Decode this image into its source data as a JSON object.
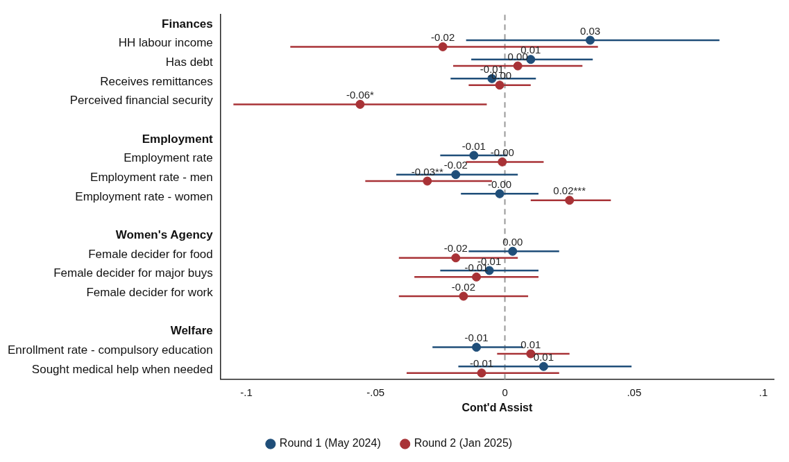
{
  "chart_data": {
    "type": "scatter",
    "orientation": "horizontal",
    "xlabel": "Cont'd Assist",
    "categories": [
      "Finances",
      "HH labour income",
      "Has debt",
      "Receives remittances",
      "Perceived financial security",
      null,
      "Employment",
      "Employment rate",
      "Employment rate - men",
      "Employment rate - women",
      null,
      "Women's Agency",
      "Female decider for food",
      "Female decider for major buys",
      "Female decider for work",
      null,
      "Welfare",
      "Enrollment rate - compulsory education",
      "Sought medical help when needed"
    ],
    "series": [
      {
        "name": "Round 1 (May 2024)",
        "color": "#1f4e79",
        "values": [
          null,
          0.033,
          0.01,
          -0.005,
          null,
          null,
          null,
          -0.012,
          -0.019,
          -0.002,
          null,
          null,
          0.003,
          -0.006,
          null,
          null,
          null,
          -0.011,
          0.015
        ],
        "errors": [
          null,
          [
            -0.015,
            0.083
          ],
          [
            -0.013,
            0.034
          ],
          [
            -0.021,
            0.012
          ],
          null,
          null,
          null,
          [
            -0.025,
            0.001
          ],
          [
            -0.042,
            0.005
          ],
          [
            -0.017,
            0.013
          ],
          null,
          null,
          [
            -0.014,
            0.021
          ],
          [
            -0.025,
            0.013
          ],
          null,
          null,
          null,
          [
            -0.028,
            0.007
          ],
          [
            -0.018,
            0.049
          ]
        ],
        "value_labels": [
          null,
          "0.03",
          "0.01",
          "-0.01",
          null,
          null,
          null,
          "-0.01",
          "-0.02",
          "-0.00",
          null,
          null,
          "0.00",
          "-0.01",
          null,
          null,
          null,
          "-0.01",
          "0.01"
        ]
      },
      {
        "name": "Round 2 (Jan 2025)",
        "color": "#a83236",
        "values": [
          null,
          -0.024,
          0.005,
          -0.002,
          -0.056,
          null,
          null,
          -0.001,
          -0.03,
          0.025,
          null,
          null,
          -0.019,
          -0.011,
          -0.016,
          null,
          null,
          0.01,
          -0.009
        ],
        "errors": [
          null,
          [
            -0.083,
            0.036
          ],
          [
            -0.02,
            0.03
          ],
          [
            -0.014,
            0.01
          ],
          [
            -0.105,
            -0.007
          ],
          null,
          null,
          [
            -0.015,
            0.015
          ],
          [
            -0.054,
            -0.005
          ],
          [
            0.01,
            0.041
          ],
          null,
          null,
          [
            -0.041,
            0.005
          ],
          [
            -0.035,
            0.013
          ],
          [
            -0.041,
            0.009
          ],
          null,
          null,
          [
            -0.003,
            0.025
          ],
          [
            -0.038,
            0.021
          ]
        ],
        "value_labels": [
          null,
          "-0.02",
          "0.00",
          "-0.00",
          "-0.06*",
          null,
          null,
          "-0.00",
          "-0.03**",
          "0.02***",
          null,
          null,
          "-0.02",
          "-0.01",
          "-0.02",
          null,
          null,
          "0.01",
          "-0.01"
        ]
      }
    ],
    "xlim": [
      -0.11,
      0.104
    ],
    "xticks": [
      {
        "value": -0.1,
        "label": "-.1"
      },
      {
        "value": -0.05,
        "label": "-.05"
      },
      0,
      {
        "value": 0.05,
        "label": ".05"
      },
      {
        "value": 0.1,
        "label": ".1"
      }
    ],
    "ref_lines": [
      {
        "axis": "x",
        "value": 0,
        "color": "#999999",
        "line_style": "dashed"
      }
    ],
    "marker": "circle",
    "grid": false,
    "legend": "bottom"
  }
}
